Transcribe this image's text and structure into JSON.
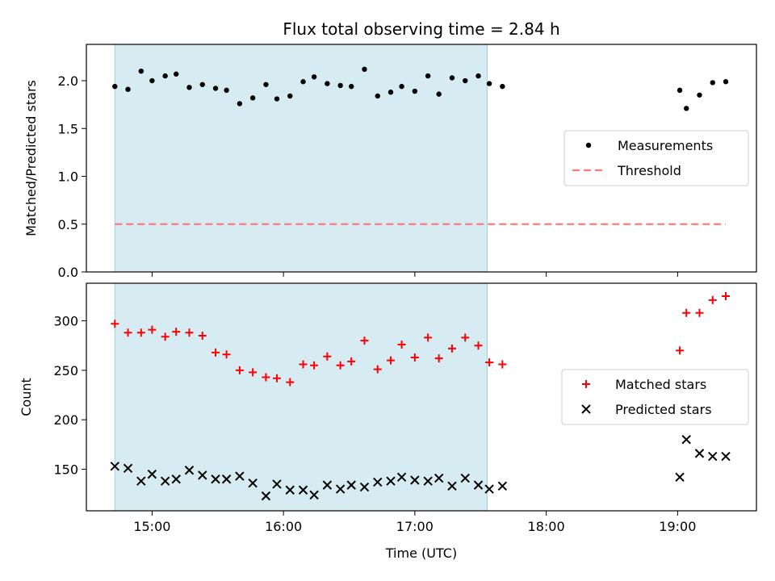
{
  "chart_data": [
    {
      "type": "scatter",
      "title": "Flux total observing time = 2.84 h",
      "xlabel": "",
      "ylabel": "Matched/Predicted stars",
      "ylim": [
        0,
        2.38
      ],
      "yticks": [
        0.0,
        0.5,
        1.0,
        1.5,
        2.0
      ],
      "ytick_labels": [
        "0.0",
        "0.5",
        "1.0",
        "1.5",
        "2.0"
      ],
      "shaded_span": [
        "14:43",
        "17:33"
      ],
      "legend": {
        "position": "center-right",
        "entries": [
          "Measurements",
          "Threshold"
        ]
      },
      "series": [
        {
          "name": "Measurements",
          "style": "dots",
          "color": "#000000",
          "x": [
            "14:43",
            "14:49",
            "14:55",
            "15:00",
            "15:06",
            "15:11",
            "15:17",
            "15:23",
            "15:29",
            "15:34",
            "15:40",
            "15:46",
            "15:52",
            "15:57",
            "16:03",
            "16:09",
            "16:14",
            "16:20",
            "16:26",
            "16:31",
            "16:37",
            "16:43",
            "16:49",
            "16:54",
            "17:00",
            "17:06",
            "17:11",
            "17:17",
            "17:23",
            "17:29",
            "17:34",
            "17:40",
            "19:01",
            "19:04",
            "19:10",
            "19:16",
            "19:22"
          ],
          "values": [
            1.94,
            1.91,
            2.1,
            2.0,
            2.05,
            2.07,
            1.93,
            1.96,
            1.92,
            1.9,
            1.76,
            1.82,
            1.96,
            1.81,
            1.84,
            1.99,
            2.04,
            1.97,
            1.95,
            1.94,
            2.12,
            1.84,
            1.88,
            1.94,
            1.89,
            2.05,
            1.86,
            2.03,
            2.0,
            2.05,
            1.97,
            1.94,
            1.9,
            1.71,
            1.85,
            1.98,
            1.99
          ]
        },
        {
          "name": "Threshold",
          "style": "dashed-line",
          "color": "#ff7a7a",
          "x": [
            "14:43",
            "19:22"
          ],
          "values": [
            0.5,
            0.5
          ]
        }
      ]
    },
    {
      "type": "scatter",
      "title": "",
      "xlabel": "Time (UTC)",
      "ylabel": "Count",
      "ylim": [
        108,
        338
      ],
      "yticks": [
        150,
        200,
        250,
        300
      ],
      "ytick_labels": [
        "150",
        "200",
        "250",
        "300"
      ],
      "xticks": [
        "15:00",
        "16:00",
        "17:00",
        "18:00",
        "19:00"
      ],
      "shaded_span": [
        "14:43",
        "17:33"
      ],
      "legend": {
        "position": "center-right",
        "entries": [
          "Matched stars",
          "Predicted stars"
        ]
      },
      "series": [
        {
          "name": "Matched stars",
          "marker": "+",
          "color": "#ff0000",
          "x": [
            "14:43",
            "14:49",
            "14:55",
            "15:00",
            "15:06",
            "15:11",
            "15:17",
            "15:23",
            "15:29",
            "15:34",
            "15:40",
            "15:46",
            "15:52",
            "15:57",
            "16:03",
            "16:09",
            "16:14",
            "16:20",
            "16:26",
            "16:31",
            "16:37",
            "16:43",
            "16:49",
            "16:54",
            "17:00",
            "17:06",
            "17:11",
            "17:17",
            "17:23",
            "17:29",
            "17:34",
            "17:40",
            "19:01",
            "19:04",
            "19:10",
            "19:16",
            "19:22"
          ],
          "values": [
            297,
            288,
            288,
            291,
            284,
            289,
            288,
            285,
            268,
            266,
            250,
            248,
            243,
            242,
            238,
            256,
            255,
            264,
            255,
            259,
            280,
            251,
            260,
            276,
            263,
            283,
            262,
            272,
            283,
            275,
            258,
            256,
            270,
            308,
            308,
            321,
            325
          ]
        },
        {
          "name": "Predicted stars",
          "marker": "x",
          "color": "#000000",
          "x": [
            "14:43",
            "14:49",
            "14:55",
            "15:00",
            "15:06",
            "15:11",
            "15:17",
            "15:23",
            "15:29",
            "15:34",
            "15:40",
            "15:46",
            "15:52",
            "15:57",
            "16:03",
            "16:09",
            "16:14",
            "16:20",
            "16:26",
            "16:31",
            "16:37",
            "16:43",
            "16:49",
            "16:54",
            "17:00",
            "17:06",
            "17:11",
            "17:17",
            "17:23",
            "17:29",
            "17:34",
            "17:40",
            "19:01",
            "19:04",
            "19:10",
            "19:16",
            "19:22"
          ],
          "values": [
            153,
            151,
            138,
            145,
            138,
            140,
            149,
            144,
            140,
            140,
            143,
            136,
            123,
            135,
            129,
            129,
            124,
            134,
            130,
            134,
            132,
            137,
            138,
            142,
            139,
            138,
            141,
            133,
            141,
            134,
            130,
            133,
            142,
            180,
            166,
            163,
            163
          ]
        }
      ]
    }
  ]
}
